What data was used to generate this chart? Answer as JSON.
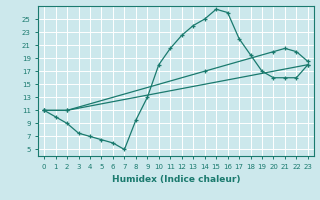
{
  "xlabel": "Humidex (Indice chaleur)",
  "bg_color": "#cce8ec",
  "line_color": "#1a7a6e",
  "grid_color": "#ffffff",
  "xlim": [
    -0.5,
    23.5
  ],
  "ylim": [
    4,
    27
  ],
  "xticks": [
    0,
    1,
    2,
    3,
    4,
    5,
    6,
    7,
    8,
    9,
    10,
    11,
    12,
    13,
    14,
    15,
    16,
    17,
    18,
    19,
    20,
    21,
    22,
    23
  ],
  "yticks": [
    5,
    7,
    9,
    11,
    13,
    15,
    17,
    19,
    21,
    23,
    25
  ],
  "line1_x": [
    0,
    1,
    2,
    3,
    4,
    5,
    6,
    7,
    8,
    9,
    10,
    11,
    12,
    13,
    14,
    15,
    16,
    17,
    18,
    19,
    20,
    21,
    22,
    23
  ],
  "line1_y": [
    11,
    10,
    9,
    7.5,
    7,
    6.5,
    6,
    5,
    9.5,
    13,
    18,
    20.5,
    22.5,
    24,
    25,
    26.5,
    26,
    22,
    19.5,
    17,
    16,
    16,
    16,
    18
  ],
  "line2_x": [
    0,
    2,
    23
  ],
  "line2_y": [
    11,
    11,
    18
  ],
  "line3_x": [
    0,
    2,
    14,
    20,
    21,
    22,
    23
  ],
  "line3_y": [
    11,
    11,
    17,
    20,
    20.5,
    20,
    18.5
  ]
}
